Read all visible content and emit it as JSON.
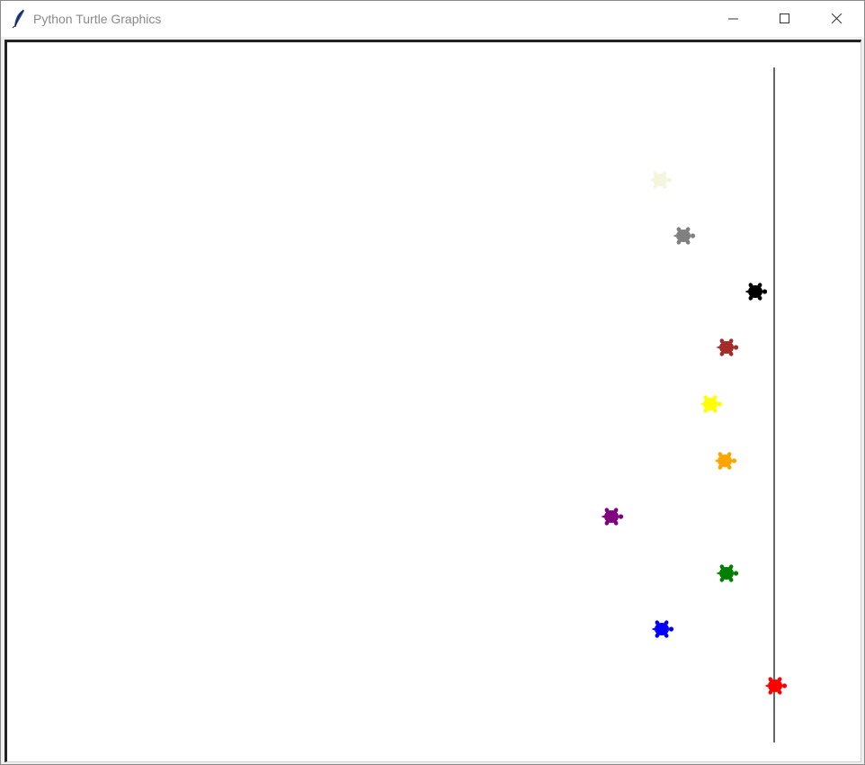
{
  "window": {
    "title": "Python Turtle Graphics",
    "icon": "feather-icon",
    "controls": [
      "minimize-icon",
      "maximize-icon",
      "close-icon"
    ]
  },
  "race": {
    "finish_line_color": "#000000",
    "turtles": [
      {
        "color": "#f5f5dc",
        "name": "beige"
      },
      {
        "color": "#808080",
        "name": "gray"
      },
      {
        "color": "#000000",
        "name": "black"
      },
      {
        "color": "#a52a2a",
        "name": "brown"
      },
      {
        "color": "#ffff00",
        "name": "yellow"
      },
      {
        "color": "#ffa500",
        "name": "orange"
      },
      {
        "color": "#800080",
        "name": "purple"
      },
      {
        "color": "#008000",
        "name": "green"
      },
      {
        "color": "#0000ff",
        "name": "blue"
      },
      {
        "color": "#ff0000",
        "name": "red"
      }
    ]
  }
}
